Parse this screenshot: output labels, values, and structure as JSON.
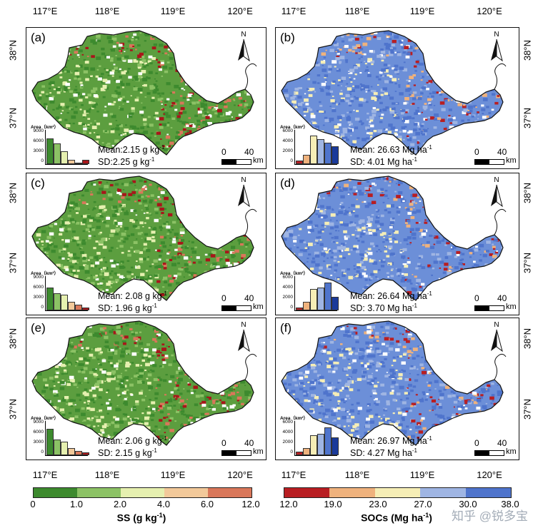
{
  "lon_labels": [
    "117°E",
    "118°E",
    "119°E",
    "120°E"
  ],
  "lat_labels": [
    "38°N",
    "37°N"
  ],
  "panels": [
    {
      "id": "a",
      "label": "(a)",
      "variable": "SS",
      "mean": "Mean:2.15 g kg",
      "mean_sup": "-1",
      "sd": "SD:2.25 g kg",
      "sd_sup": "-1",
      "hist": {
        "title": "Area（km²）",
        "yticks": [
          "9000",
          "6000",
          "3000",
          "0"
        ],
        "ymax": 9000,
        "values": [
          7300,
          6000,
          3700,
          1300,
          500,
          1300
        ]
      }
    },
    {
      "id": "b",
      "label": "(b)",
      "variable": "SOCs",
      "mean": "Mean: 26.63 Mg ha",
      "mean_sup": "-1",
      "sd": "SD: 4.01 Mg ha",
      "sd_sup": "-1",
      "hist": {
        "title": "Area（km²）",
        "yticks": [
          "6000",
          "4000",
          "2000",
          "0"
        ],
        "ymax": 6500,
        "values": [
          800,
          1900,
          5900,
          5100,
          4500,
          3700
        ]
      }
    },
    {
      "id": "c",
      "label": "(c)",
      "variable": "SS",
      "mean": "Mean: 2.08 g kg",
      "mean_sup": "-1",
      "sd": "SD: 1.96 g kg",
      "sd_sup": "-1",
      "hist": {
        "title": "Area（km²）",
        "yticks": [
          "9000",
          "6000",
          "3000",
          "0"
        ],
        "ymax": 9000,
        "values": [
          6600,
          5000,
          4500,
          2400,
          1600,
          900
        ]
      }
    },
    {
      "id": "d",
      "label": "(d)",
      "variable": "SOCs",
      "mean": "Mean: 26.64 Mg ha",
      "mean_sup": "-1",
      "sd": "SD: 3.70 Mg ha",
      "sd_sup": "-1",
      "hist": {
        "title": "Area（km²）",
        "yticks": [
          "6000",
          "4000",
          "2000",
          "0"
        ],
        "ymax": 6500,
        "values": [
          600,
          1800,
          4500,
          4800,
          5800,
          2800
        ]
      }
    },
    {
      "id": "e",
      "label": "(e)",
      "variable": "SS",
      "mean": "Mean: 2.06 g kg",
      "mean_sup": "-1",
      "sd": "SD: 2.15 g kg",
      "sd_sup": "-1",
      "hist": {
        "title": "Area（km²）",
        "yticks": [
          "9000",
          "6000",
          "3000",
          "0"
        ],
        "ymax": 9000,
        "values": [
          7500,
          4600,
          3800,
          2100,
          1200,
          900
        ]
      }
    },
    {
      "id": "f",
      "label": "(f)",
      "variable": "SOCs",
      "mean": "Mean: 26.97 Mg ha",
      "mean_sup": "-1",
      "sd": "SD: 4.27 Mg ha",
      "sd_sup": "-1",
      "hist": {
        "title": "Area（km²）",
        "yticks": [
          "6000",
          "4000",
          "2000",
          "0"
        ],
        "ymax": 6500,
        "values": [
          700,
          1500,
          4100,
          4500,
          5800,
          3700
        ]
      }
    }
  ],
  "north_label": "N",
  "scale": {
    "zero": "0",
    "forty": "40",
    "unit": "km"
  },
  "ss_legend": {
    "title": "SS (g kg",
    "title_sup": "-1",
    "title_end": ")",
    "ticks": [
      "0",
      "1.0",
      "2.0",
      "4.0",
      "6.0",
      "12.0"
    ],
    "colors": [
      "#3d8a2e",
      "#8cc265",
      "#e6f0b0",
      "#f2c99a",
      "#d9775a",
      "#a8161a"
    ]
  },
  "soc_legend": {
    "title": "SOCs (Mg ha",
    "title_sup": "-1",
    "title_end": ")",
    "ticks": [
      "12.0",
      "19.0",
      "23.0",
      "27.0",
      "30.0",
      "38.0"
    ],
    "colors": [
      "#b81e22",
      "#efb27d",
      "#f6eeb6",
      "#9fb5e3",
      "#4f74cc",
      "#1a3a9a"
    ]
  },
  "watermark": "知乎 @锐多宝"
}
